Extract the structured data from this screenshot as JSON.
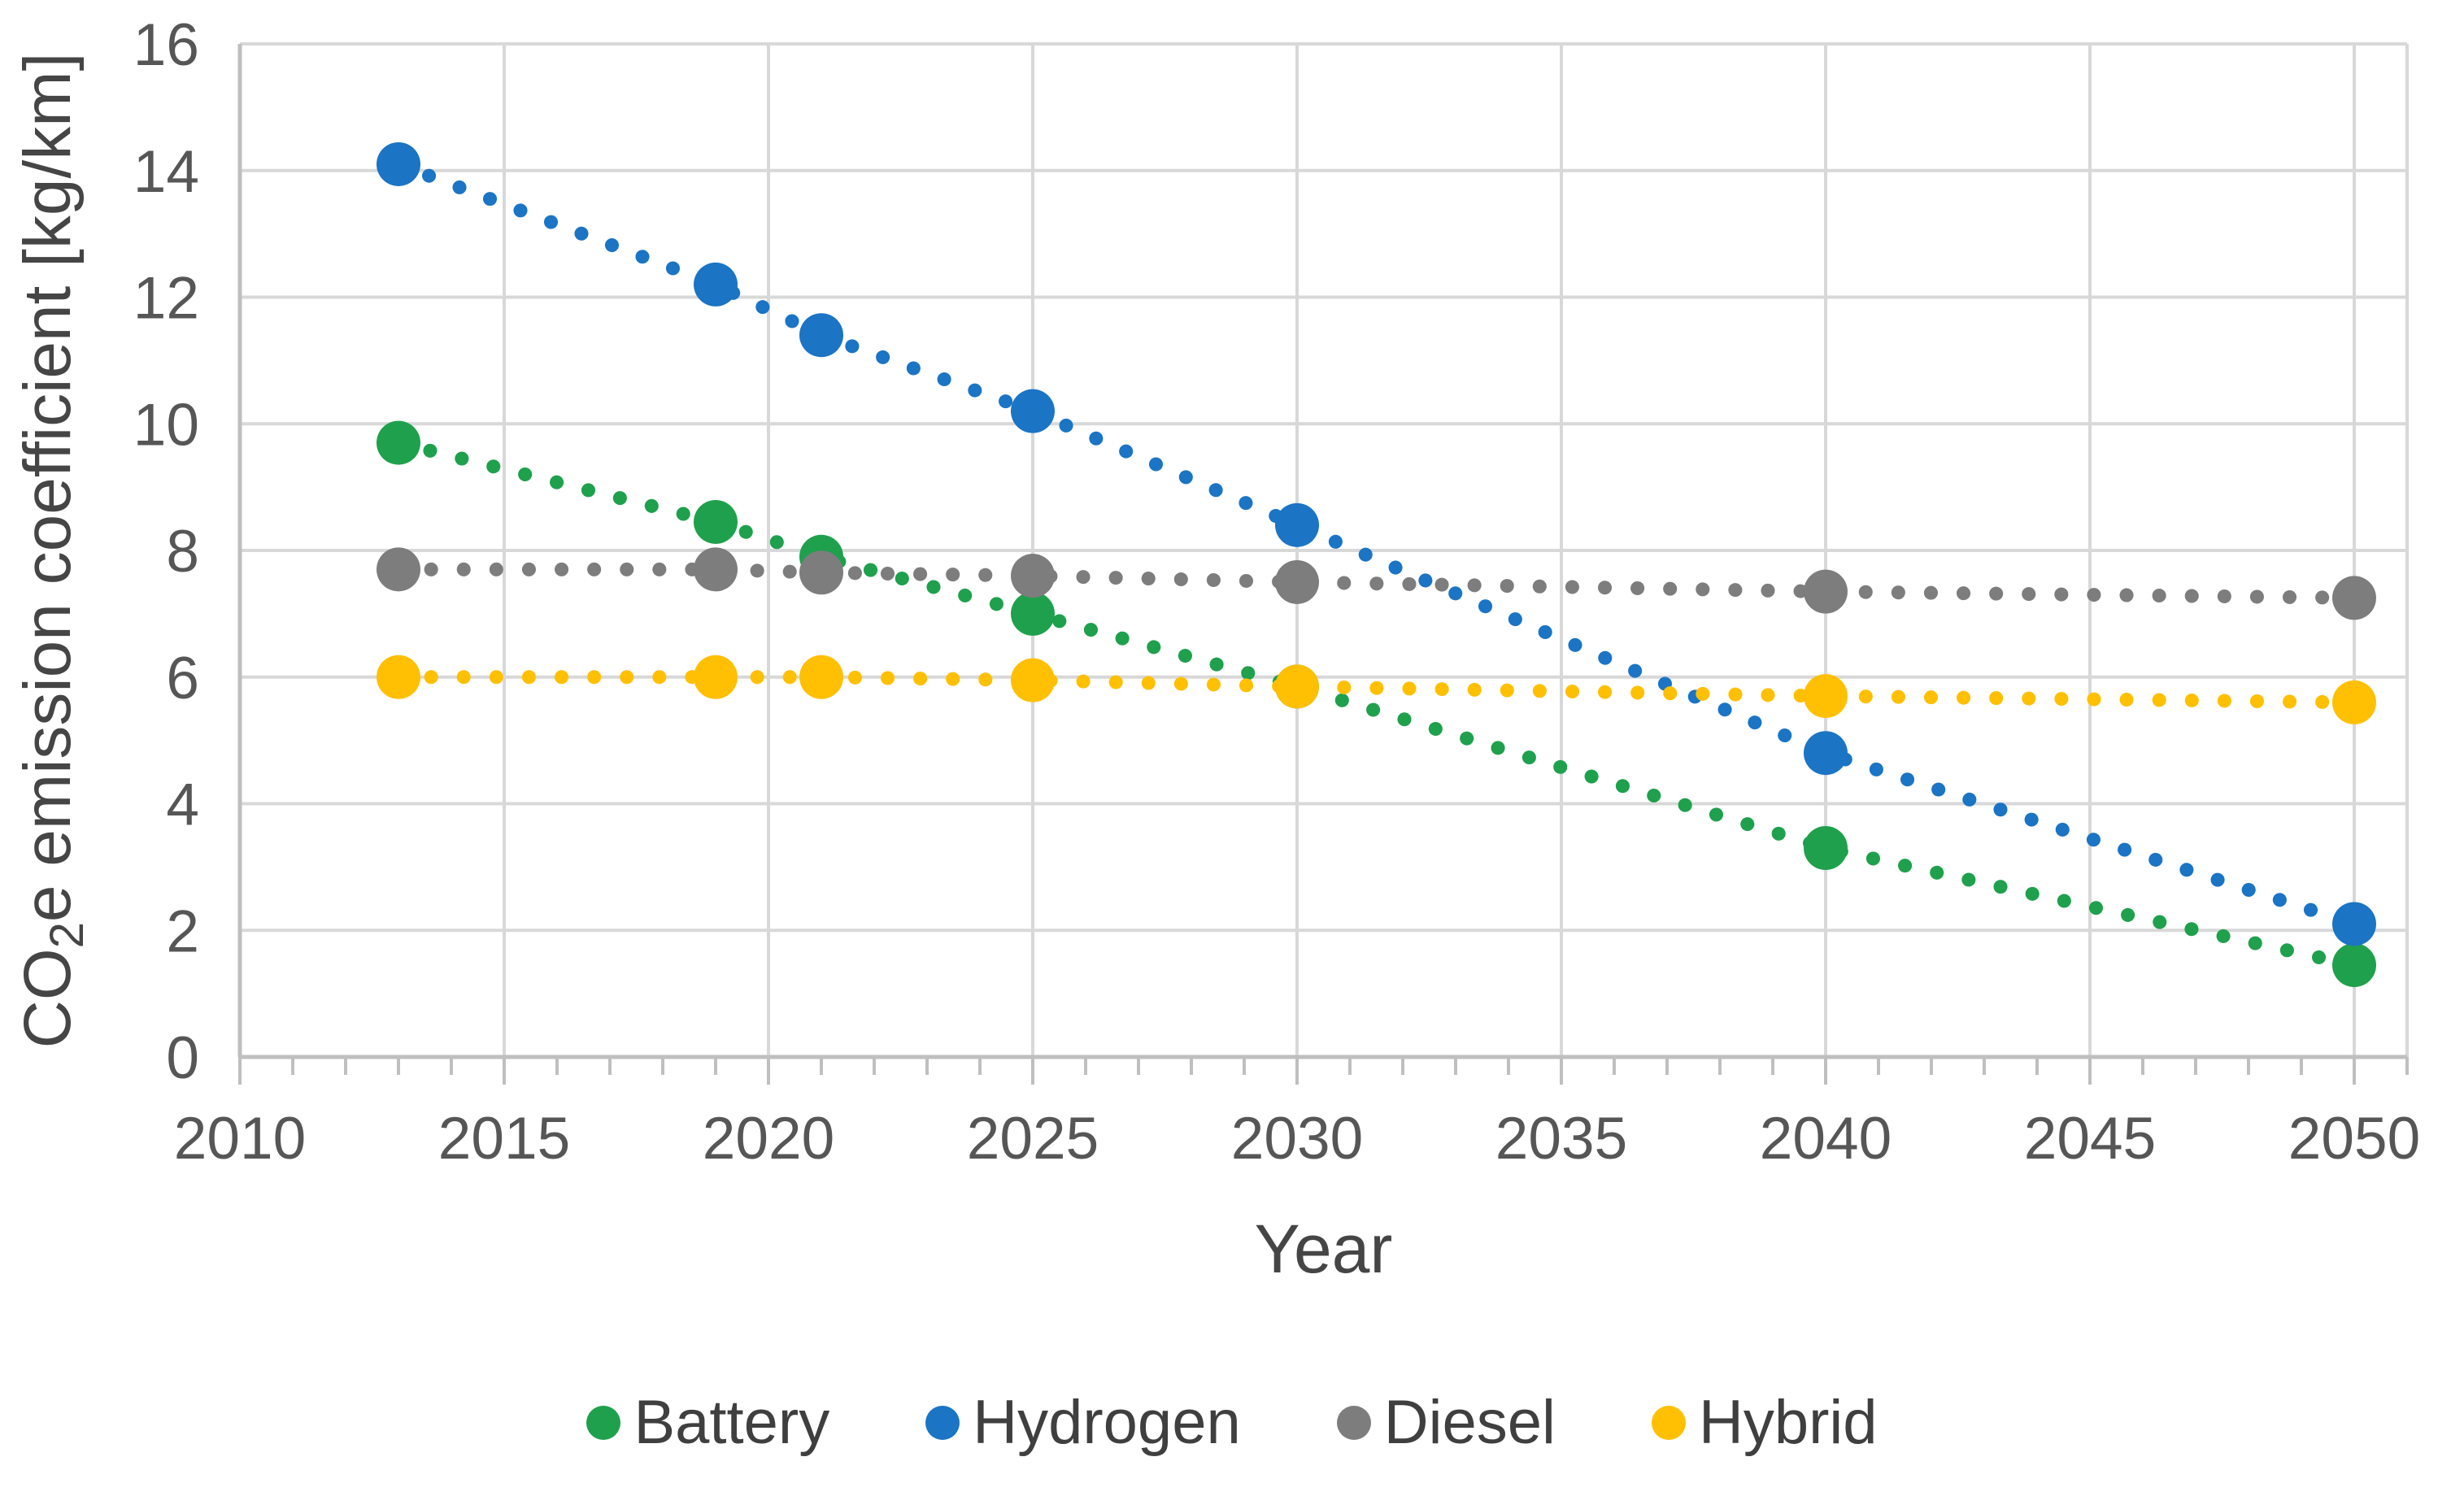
{
  "figure": {
    "background": "#ffffff",
    "gridline_color": "#d8d8d8",
    "axis_line_color": "#bfbfbf",
    "tick_label_color": "#565656",
    "axis_title_color": "#454545",
    "legend_text_color": "#3f3f3f"
  },
  "chart_data": {
    "type": "scatter",
    "title": "",
    "xlabel": "Year",
    "ylabel": "CO₂e emission coefficient [kg/km]",
    "ylabel_parts": {
      "prefix": "CO",
      "sub": "2",
      "suffix": "e emission coefficient [kg/km]"
    },
    "line_style": "dotted",
    "legend_position": "bottom",
    "grid": true,
    "xlim": [
      2010,
      2051
    ],
    "ylim": [
      0,
      16
    ],
    "x_major_ticks": [
      2010,
      2015,
      2020,
      2025,
      2030,
      2035,
      2040,
      2045,
      2050
    ],
    "x_minor_tick_step": 1,
    "y_ticks": [
      0,
      2,
      4,
      6,
      8,
      10,
      12,
      14,
      16
    ],
    "x": [
      2013,
      2019,
      2021,
      2025,
      2030,
      2040,
      2050
    ],
    "series": [
      {
        "name": "Battery",
        "color": "#1fa04d",
        "values": [
          9.7,
          8.45,
          7.9,
          7.0,
          5.85,
          3.3,
          1.45
        ]
      },
      {
        "name": "Hydrogen",
        "color": "#1b74c4",
        "values": [
          14.1,
          12.2,
          11.4,
          10.2,
          8.4,
          4.8,
          2.1
        ]
      },
      {
        "name": "Diesel",
        "color": "#7d7d7d",
        "values": [
          7.7,
          7.7,
          7.65,
          7.6,
          7.5,
          7.35,
          7.25
        ]
      },
      {
        "name": "Hybrid",
        "color": "#ffc003",
        "values": [
          6.0,
          6.0,
          6.0,
          5.95,
          5.85,
          5.7,
          5.6
        ]
      }
    ]
  }
}
